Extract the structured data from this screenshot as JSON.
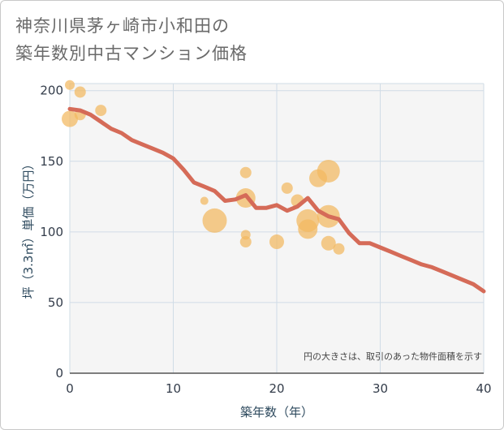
{
  "title": {
    "line1": "神奈川県茅ヶ崎市小和田の",
    "line2": "築年数別中古マンション価格"
  },
  "colors": {
    "plot_background": "#f5f5f5",
    "grid": "#d0dce6",
    "bubble": "#f2b95f",
    "line": "#d56b58"
  },
  "chart_data": {
    "type": "scatter",
    "xlabel": "築年数（年）",
    "ylabel": "坪（3.3㎡）単価（万円）",
    "xlim": [
      0,
      40
    ],
    "ylim": [
      0,
      205
    ],
    "x_ticks": [
      0,
      10,
      20,
      30,
      40
    ],
    "y_ticks": [
      0,
      50,
      100,
      150,
      200
    ],
    "grid": true,
    "note": "円の大きさは、取引のあった物件面積を示す",
    "bubbles": [
      {
        "x": 0,
        "y": 204,
        "size": 6
      },
      {
        "x": 0,
        "y": 180,
        "size": 10
      },
      {
        "x": 1,
        "y": 199,
        "size": 7
      },
      {
        "x": 1,
        "y": 183,
        "size": 7
      },
      {
        "x": 3,
        "y": 186,
        "size": 7
      },
      {
        "x": 13,
        "y": 122,
        "size": 5
      },
      {
        "x": 14,
        "y": 108,
        "size": 15
      },
      {
        "x": 17,
        "y": 142,
        "size": 7
      },
      {
        "x": 17,
        "y": 124,
        "size": 12
      },
      {
        "x": 17,
        "y": 98,
        "size": 6
      },
      {
        "x": 17,
        "y": 93,
        "size": 7
      },
      {
        "x": 20,
        "y": 93,
        "size": 9
      },
      {
        "x": 21,
        "y": 131,
        "size": 7
      },
      {
        "x": 22,
        "y": 122,
        "size": 8
      },
      {
        "x": 23,
        "y": 108,
        "size": 14
      },
      {
        "x": 23,
        "y": 102,
        "size": 12
      },
      {
        "x": 24,
        "y": 138,
        "size": 11
      },
      {
        "x": 25,
        "y": 143,
        "size": 14
      },
      {
        "x": 25,
        "y": 111,
        "size": 14
      },
      {
        "x": 25,
        "y": 92,
        "size": 9
      },
      {
        "x": 26,
        "y": 88,
        "size": 7
      }
    ],
    "trend": {
      "x": [
        0,
        1,
        2,
        3,
        4,
        5,
        6,
        7,
        8,
        9,
        10,
        11,
        12,
        13,
        14,
        15,
        16,
        17,
        18,
        19,
        20,
        21,
        22,
        23,
        24,
        25,
        26,
        27,
        28,
        29,
        30,
        31,
        32,
        33,
        34,
        35,
        36,
        37,
        38,
        39,
        40
      ],
      "y": [
        187,
        186,
        183,
        178,
        173,
        170,
        165,
        162,
        159,
        156,
        152,
        144,
        135,
        132,
        129,
        122,
        123,
        126,
        117,
        117,
        119,
        115,
        118,
        124,
        115,
        111,
        109,
        99,
        92,
        92,
        89,
        86,
        83,
        80,
        77,
        75,
        72,
        69,
        66,
        63,
        58
      ]
    }
  }
}
